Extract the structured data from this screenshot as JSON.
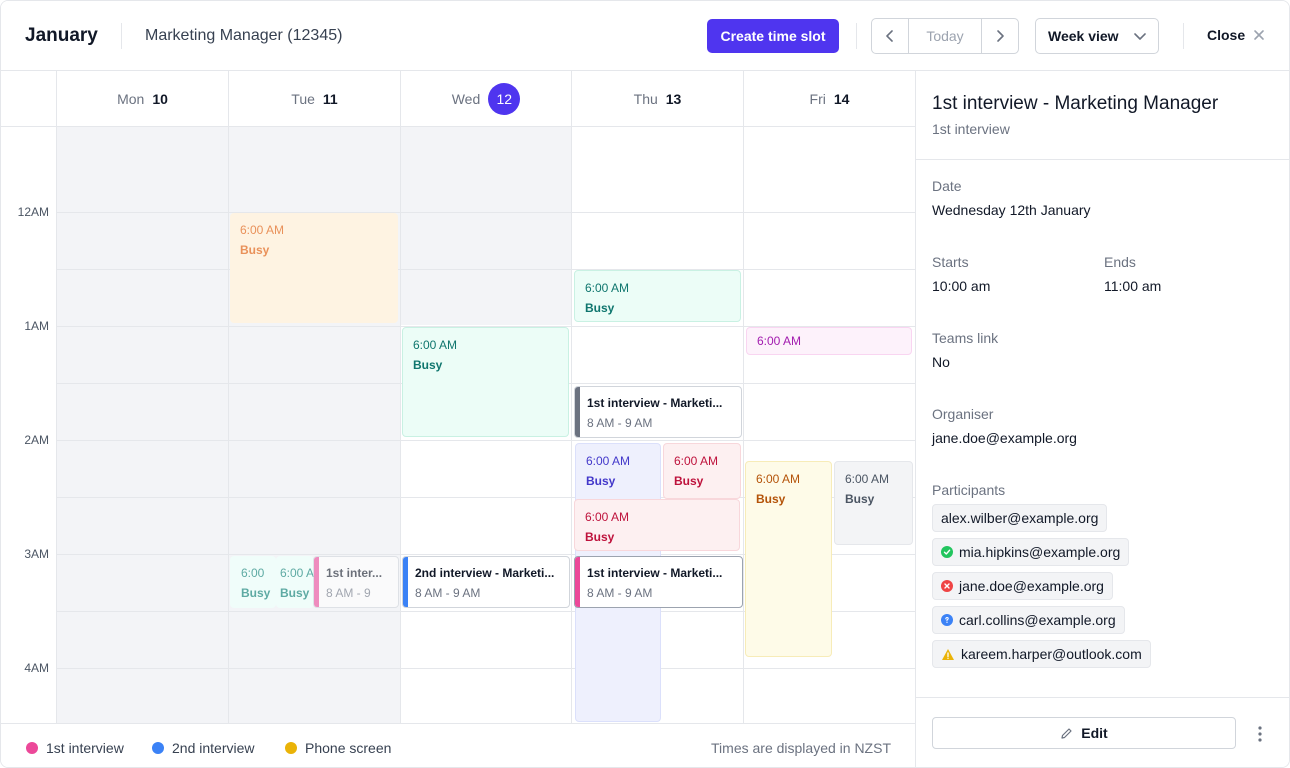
{
  "header": {
    "month": "January",
    "job_title": "Marketing Manager (12345)",
    "create_label": "Create time slot",
    "today_label": "Today",
    "view_label": "Week view",
    "close_label": "Close"
  },
  "days": [
    {
      "name": "Mon",
      "num": "10"
    },
    {
      "name": "Tue",
      "num": "11"
    },
    {
      "name": "Wed",
      "num": "12"
    },
    {
      "name": "Thu",
      "num": "13"
    },
    {
      "name": "Fri",
      "num": "14"
    }
  ],
  "time_labels": [
    "12AM",
    "1AM",
    "2AM",
    "3AM",
    "4AM"
  ],
  "events": {
    "tue_busy_1": {
      "time": "6:00 AM",
      "status": "Busy"
    },
    "thu_busy_1": {
      "time": "6:00 AM",
      "status": "Busy"
    },
    "wed_busy_1": {
      "time": "6:00 AM",
      "status": "Busy"
    },
    "fri_busy_1": {
      "time": "6:00 AM"
    },
    "thu_interview_1": {
      "title": "1st interview - Marketi...",
      "time": "8 AM - 9 AM"
    },
    "thu_busy_blue": {
      "time": "6:00 AM",
      "status": "Busy"
    },
    "thu_busy_red_1": {
      "time": "6:00 AM",
      "status": "Busy"
    },
    "thu_busy_red_2": {
      "time": "6:00 AM",
      "status": "Busy"
    },
    "fri_busy_yellow": {
      "time": "6:00 AM",
      "status": "Busy"
    },
    "fri_busy_gray": {
      "time": "6:00 AM",
      "status": "Busy"
    },
    "tue_busy_a": {
      "time": "6:00",
      "status": "Busy"
    },
    "tue_busy_b": {
      "time": "6:00 A",
      "status": "Busy"
    },
    "tue_interview": {
      "title": "1st inter...",
      "time": "8 AM - 9"
    },
    "wed_interview_2": {
      "title": "2nd interview - Marketi...",
      "time": "8 AM - 9 AM"
    },
    "thu_interview_2": {
      "title": "1st interview - Marketi...",
      "time": "8 AM - 9 AM"
    }
  },
  "legend": [
    {
      "label": "1st interview",
      "color": "#ec4899"
    },
    {
      "label": "2nd interview",
      "color": "#3b82f6"
    },
    {
      "label": "Phone screen",
      "color": "#eab308"
    }
  ],
  "timezone_note": "Times are displayed in NZST",
  "details": {
    "title": "1st interview - Marketing Manager",
    "subtitle": "1st interview",
    "date_label": "Date",
    "date_value": "Wednesday 12th January",
    "starts_label": "Starts",
    "starts_value": "10:00 am",
    "ends_label": "Ends",
    "ends_value": "11:00 am",
    "teams_label": "Teams link",
    "teams_value": "No",
    "organiser_label": "Organiser",
    "organiser_value": "jane.doe@example.org",
    "participants_label": "Participants",
    "participants": [
      {
        "email": "alex.wilber@example.org",
        "status": "none"
      },
      {
        "email": "mia.hipkins@example.org",
        "status": "accepted"
      },
      {
        "email": "jane.doe@example.org",
        "status": "declined"
      },
      {
        "email": "carl.collins@example.org",
        "status": "unknown"
      },
      {
        "email": "kareem.harper@outlook.com",
        "status": "warning"
      }
    ],
    "edit_label": "Edit"
  }
}
